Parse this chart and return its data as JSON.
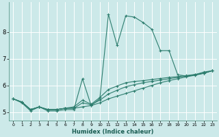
{
  "xlabel": "Humidex (Indice chaleur)",
  "background_color": "#cce9e9",
  "grid_color": "#b0d8d8",
  "line_color": "#2d7d6e",
  "xlim": [
    -0.5,
    23.5
  ],
  "ylim": [
    4.7,
    9.1
  ],
  "yticks": [
    5,
    6,
    7,
    8
  ],
  "xticks": [
    0,
    1,
    2,
    3,
    4,
    5,
    6,
    7,
    8,
    9,
    10,
    11,
    12,
    13,
    14,
    15,
    16,
    17,
    18,
    19,
    20,
    21,
    22,
    23
  ],
  "lines": [
    {
      "x": [
        0,
        1,
        2,
        3,
        4,
        5,
        6,
        7,
        8,
        9,
        10,
        11,
        12,
        13,
        14,
        15,
        16,
        17,
        18,
        19,
        20,
        21,
        22,
        23
      ],
      "y": [
        5.5,
        5.35,
        5.05,
        5.2,
        5.05,
        5.05,
        5.1,
        5.1,
        6.25,
        5.25,
        5.5,
        8.65,
        7.5,
        8.6,
        8.55,
        8.35,
        8.1,
        7.3,
        7.3,
        6.4,
        6.35,
        6.4,
        6.5,
        6.55
      ]
    },
    {
      "x": [
        0,
        1,
        2,
        3,
        4,
        5,
        6,
        7,
        8,
        9,
        10,
        11,
        12,
        13,
        14,
        15,
        16,
        17,
        18,
        19,
        20,
        21,
        22,
        23
      ],
      "y": [
        5.5,
        5.38,
        5.1,
        5.2,
        5.1,
        5.1,
        5.15,
        5.15,
        5.2,
        5.25,
        5.35,
        5.5,
        5.6,
        5.7,
        5.8,
        5.9,
        6.0,
        6.1,
        6.18,
        6.25,
        6.32,
        6.38,
        6.45,
        6.55
      ]
    },
    {
      "x": [
        0,
        1,
        2,
        3,
        4,
        5,
        6,
        7,
        8,
        9,
        10,
        11,
        12,
        13,
        14,
        15,
        16,
        17,
        18,
        19,
        20,
        21,
        22,
        23
      ],
      "y": [
        5.5,
        5.38,
        5.1,
        5.2,
        5.1,
        5.1,
        5.15,
        5.15,
        5.35,
        5.28,
        5.45,
        5.68,
        5.82,
        5.95,
        6.03,
        6.1,
        6.15,
        6.2,
        6.25,
        6.3,
        6.35,
        6.4,
        6.45,
        6.55
      ]
    },
    {
      "x": [
        0,
        1,
        2,
        3,
        4,
        5,
        6,
        7,
        8,
        9,
        10,
        11,
        12,
        13,
        14,
        15,
        16,
        17,
        18,
        19,
        20,
        21,
        22,
        23
      ],
      "y": [
        5.5,
        5.38,
        5.1,
        5.2,
        5.1,
        5.1,
        5.15,
        5.2,
        5.45,
        5.3,
        5.55,
        5.85,
        5.98,
        6.1,
        6.15,
        6.18,
        6.22,
        6.26,
        6.3,
        6.33,
        6.37,
        6.41,
        6.46,
        6.55
      ]
    }
  ]
}
